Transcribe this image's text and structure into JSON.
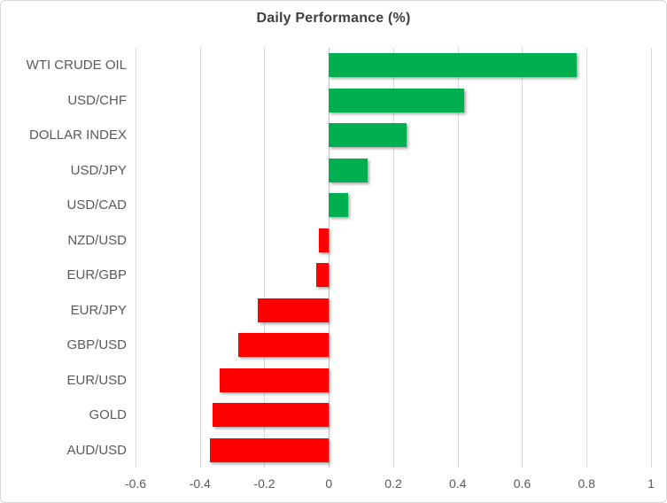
{
  "chart_data": {
    "type": "bar",
    "orientation": "horizontal",
    "title": "Daily Performance (%)",
    "categories": [
      "WTI CRUDE OIL",
      "USD/CHF",
      "DOLLAR INDEX",
      "USD/JPY",
      "USD/CAD",
      "NZD/USD",
      "EUR/GBP",
      "EUR/JPY",
      "GBP/USD",
      "EUR/USD",
      "GOLD",
      "AUD/USD"
    ],
    "values": [
      0.77,
      0.42,
      0.24,
      0.12,
      0.06,
      -0.03,
      -0.04,
      -0.22,
      -0.28,
      -0.34,
      -0.36,
      -0.37
    ],
    "xlabel": "",
    "ylabel": "",
    "xlim": [
      -0.6,
      1.0
    ],
    "xticks": [
      -0.6,
      -0.4,
      -0.2,
      0,
      0.2,
      0.4,
      0.6,
      0.8,
      1
    ],
    "xtick_labels": [
      "-0.6",
      "-0.4",
      "-0.2",
      "0",
      "0.2",
      "0.4",
      "0.6",
      "0.8",
      "1"
    ],
    "grid": true,
    "legend": false,
    "colors": {
      "positive": "#00B050",
      "negative": "#FF0000",
      "gridline": "#D9D9D9",
      "zero_axis": "#BFBFBF",
      "label_text": "#595959",
      "title_text": "#404040"
    }
  }
}
